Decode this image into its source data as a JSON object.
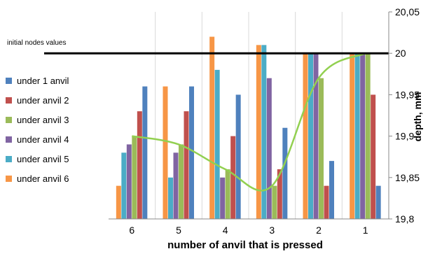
{
  "chart_data": {
    "type": "bar",
    "title": "",
    "xlabel": "number of anvil that is pressed",
    "ylabel": "depth, mm",
    "categories": [
      "6",
      "5",
      "4",
      "3",
      "2",
      "1"
    ],
    "ylim": [
      19.8,
      20.05
    ],
    "yticks": [
      "19,8",
      "19,85",
      "19,9",
      "19,95",
      "20",
      "20,05"
    ],
    "grid": "vertical",
    "legend_position": "left",
    "reference_line": {
      "label": "initial nodes values",
      "value": 20.0,
      "color": "#000000"
    },
    "series": [
      {
        "name": "under anvil 6",
        "color": "#F79646",
        "values": [
          19.84,
          19.96,
          20.02,
          20.01,
          20.0,
          20.0
        ]
      },
      {
        "name": "under anvil 5",
        "color": "#4BACC6",
        "values": [
          19.88,
          19.85,
          19.98,
          20.01,
          20.0,
          20.0
        ]
      },
      {
        "name": "under anvil 4",
        "color": "#8064A2",
        "values": [
          19.89,
          19.88,
          19.85,
          19.97,
          20.0,
          20.0
        ]
      },
      {
        "name": "under anvil 3",
        "color": "#9BBB59",
        "values": [
          19.9,
          19.89,
          19.86,
          19.84,
          19.97,
          20.0
        ]
      },
      {
        "name": "under anvil 2",
        "color": "#C0504D",
        "values": [
          19.93,
          19.93,
          19.9,
          19.86,
          19.84,
          19.95
        ]
      },
      {
        "name": "under anvil 1",
        "color": "#4F81BD",
        "values": [
          19.96,
          19.96,
          19.95,
          19.91,
          19.87,
          19.84
        ]
      }
    ],
    "trend_line": {
      "color": "#92D050",
      "values": [
        19.9,
        19.89,
        19.86,
        19.84,
        19.97,
        20.0
      ]
    },
    "legend_order": [
      "under 1 anvil",
      "under anvil 2",
      "under anvil 3",
      "under anvil 4",
      "under anvil 5",
      "under anvil 6"
    ],
    "legend_colors": [
      "#4F81BD",
      "#C0504D",
      "#9BBB59",
      "#8064A2",
      "#4BACC6",
      "#F79646"
    ]
  }
}
